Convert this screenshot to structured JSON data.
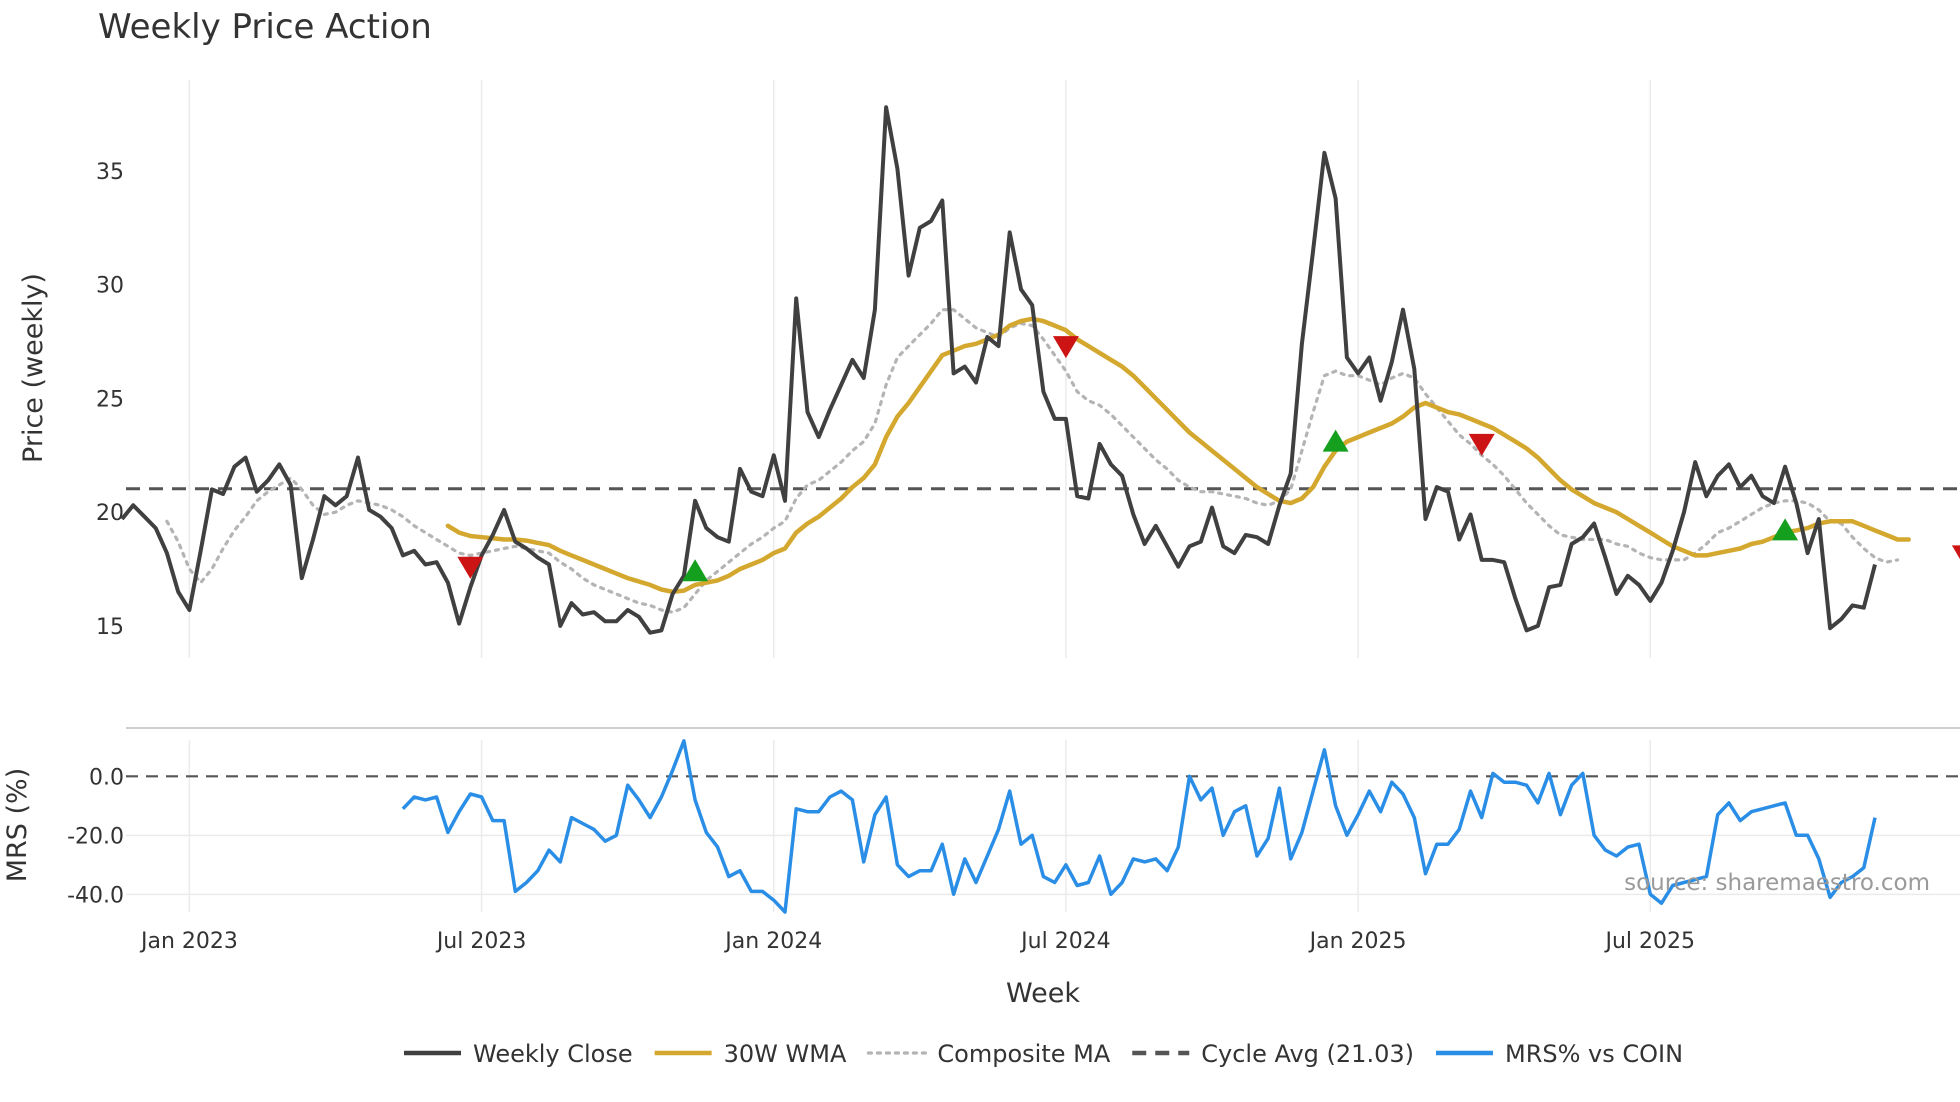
{
  "chart_data": {
    "type": "line",
    "title": "Weekly Price Action",
    "xlabel": "Week",
    "source": "source: sharemaestro.com",
    "x_ticks": [
      "Jan 2023",
      "Jul 2023",
      "Jan 2024",
      "Jul 2024",
      "Jan 2025",
      "Jul 2025"
    ],
    "price_panel": {
      "ylabel": "Price (weekly)",
      "ylim": [
        13.5,
        39
      ],
      "y_ticks": [
        15,
        20,
        25,
        30,
        35
      ],
      "weekly_close": [
        19.7,
        20.3,
        19.8,
        19.3,
        18.2,
        16.5,
        15.7,
        18.3,
        21,
        20.8,
        22,
        22.4,
        20.9,
        21.4,
        22.1,
        21.2,
        17.1,
        18.8,
        20.7,
        20.3,
        20.7,
        22.4,
        20.1,
        19.8,
        19.3,
        18.1,
        18.3,
        17.7,
        17.8,
        16.9,
        15.1,
        16.7,
        18.1,
        19,
        20.1,
        18.7,
        18.4,
        18,
        17.7,
        15,
        16,
        15.5,
        15.6,
        15.2,
        15.2,
        15.7,
        15.4,
        14.7,
        14.8,
        16.4,
        17.2,
        20.5,
        19.3,
        18.9,
        18.7,
        21.9,
        20.9,
        20.7,
        22.5,
        20.5,
        29.4,
        24.4,
        23.3,
        24.5,
        25.6,
        26.7,
        25.9,
        28.9,
        37.8,
        35.1,
        30.4,
        32.5,
        32.8,
        33.7,
        26.1,
        26.4,
        25.7,
        27.7,
        27.3,
        32.3,
        29.8,
        29.1,
        25.3,
        24.1,
        24.1,
        20.7,
        20.6,
        23,
        22.1,
        21.6,
        19.9,
        18.6,
        19.4,
        18.5,
        17.6,
        18.5,
        18.7,
        20.2,
        18.5,
        18.2,
        19,
        18.9,
        18.6,
        20.3,
        21.7,
        27.4,
        31.5,
        35.8,
        33.8,
        26.8,
        26.1,
        26.8,
        24.9,
        26.6,
        28.9,
        26.3,
        19.7,
        21.1,
        20.9,
        18.8,
        19.9,
        17.9,
        17.9,
        17.8,
        16.2,
        14.8,
        15,
        16.7,
        16.8,
        18.6,
        18.9,
        19.5,
        18,
        16.4,
        17.2,
        16.8,
        16.1,
        16.9,
        18.3,
        20,
        22.2,
        20.7,
        21.6,
        22.1,
        21.1,
        21.6,
        20.7,
        20.4,
        22,
        20.4,
        18.2,
        19.7,
        14.9,
        15.3,
        15.9,
        15.8,
        17.7
      ],
      "wma_30w": [
        null,
        null,
        null,
        null,
        null,
        null,
        null,
        null,
        null,
        null,
        null,
        null,
        null,
        null,
        null,
        null,
        null,
        null,
        null,
        null,
        null,
        null,
        null,
        null,
        null,
        null,
        null,
        null,
        null,
        19.4,
        19.1,
        18.95,
        18.9,
        18.85,
        18.8,
        18.8,
        18.75,
        18.65,
        18.55,
        18.3,
        18.1,
        17.9,
        17.7,
        17.5,
        17.3,
        17.1,
        16.95,
        16.8,
        16.6,
        16.5,
        16.55,
        16.8,
        16.9,
        17,
        17.2,
        17.5,
        17.7,
        17.9,
        18.2,
        18.4,
        19.1,
        19.5,
        19.8,
        20.2,
        20.6,
        21.1,
        21.5,
        22.1,
        23.3,
        24.2,
        24.8,
        25.5,
        26.2,
        26.9,
        27.1,
        27.3,
        27.4,
        27.6,
        27.8,
        28.2,
        28.4,
        28.5,
        28.4,
        28.2,
        28,
        27.6,
        27.3,
        27,
        26.7,
        26.4,
        26,
        25.5,
        25,
        24.5,
        24,
        23.5,
        23.1,
        22.7,
        22.3,
        21.9,
        21.5,
        21.1,
        20.8,
        20.5,
        20.4,
        20.6,
        21.1,
        22,
        22.7,
        23.1,
        23.3,
        23.5,
        23.7,
        23.9,
        24.2,
        24.6,
        24.8,
        24.6,
        24.4,
        24.3,
        24.1,
        23.9,
        23.7,
        23.4,
        23.1,
        22.8,
        22.4,
        21.9,
        21.4,
        21,
        20.7,
        20.4,
        20.2,
        20,
        19.7,
        19.4,
        19.1,
        18.8,
        18.5,
        18.3,
        18.1,
        18.1,
        18.2,
        18.3,
        18.4,
        18.6,
        18.7,
        18.9,
        19.1,
        19.2,
        19.3,
        19.5,
        19.6,
        19.6,
        19.6,
        19.4,
        19.2,
        19,
        18.8,
        18.8
      ],
      "composite_ma": [
        null,
        null,
        null,
        null,
        19.6,
        18.7,
        17.5,
        16.9,
        17.5,
        18.4,
        19.2,
        19.8,
        20.5,
        20.9,
        21.2,
        21.5,
        21,
        20.3,
        19.9,
        20,
        20.3,
        20.5,
        20.4,
        20.3,
        20.1,
        19.8,
        19.4,
        19.1,
        18.8,
        18.5,
        18.2,
        18.1,
        18.2,
        18.3,
        18.4,
        18.5,
        18.4,
        18.3,
        18.2,
        17.8,
        17.5,
        17.1,
        16.8,
        16.6,
        16.4,
        16.2,
        16,
        15.9,
        15.7,
        15.6,
        15.8,
        16.4,
        17,
        17.4,
        17.8,
        18.2,
        18.6,
        18.9,
        19.3,
        19.6,
        20.6,
        21.2,
        21.4,
        21.8,
        22.2,
        22.7,
        23.1,
        23.9,
        25.6,
        26.8,
        27.3,
        27.8,
        28.3,
        28.9,
        28.9,
        28.5,
        28.1,
        27.9,
        27.7,
        28.1,
        28.3,
        28.2,
        27.6,
        26.9,
        26.2,
        25.3,
        24.9,
        24.7,
        24.3,
        23.8,
        23.3,
        22.8,
        22.3,
        21.9,
        21.4,
        21.1,
        20.9,
        20.9,
        20.8,
        20.7,
        20.6,
        20.4,
        20.3,
        20.5,
        21,
        22.7,
        24.4,
        26,
        26.2,
        26,
        26,
        25.8,
        25.6,
        25.9,
        26.1,
        25.9,
        25.2,
        24.6,
        24,
        23.4,
        23,
        22.5,
        22.1,
        21.6,
        21,
        20.4,
        19.9,
        19.4,
        19,
        18.9,
        18.8,
        18.8,
        18.8,
        18.6,
        18.5,
        18.2,
        18,
        17.9,
        17.9,
        17.9,
        18.2,
        18.6,
        19.1,
        19.3,
        19.6,
        19.9,
        20.2,
        20.4,
        20.5,
        20.5,
        20.4,
        20.1,
        19.6,
        19.5,
        18.9,
        18.4,
        18,
        17.8,
        17.9
      ],
      "cycle_avg": 21.03,
      "buy_signals": [
        {
          "week": 51,
          "price": 17.4
        },
        {
          "week": 108,
          "price": 23.1
        },
        {
          "week": 148,
          "price": 19.2
        }
      ],
      "sell_signals": [
        {
          "week": 31,
          "price": 17.6
        },
        {
          "week": 84,
          "price": 27.3
        },
        {
          "week": 121,
          "price": 23
        },
        {
          "week": 164,
          "price": 18.1
        }
      ]
    },
    "mrs_panel": {
      "ylabel": "MRS (%)",
      "ylim": [
        -47,
        14
      ],
      "y_ticks": [
        0,
        -20,
        -40
      ],
      "y_tick_labels": [
        "0.0",
        "-20.0",
        "-40.0"
      ],
      "zero_line": 0,
      "mrs_vs_coin": [
        null,
        null,
        null,
        null,
        null,
        null,
        null,
        null,
        null,
        null,
        null,
        null,
        null,
        null,
        null,
        null,
        null,
        null,
        null,
        null,
        null,
        null,
        null,
        null,
        null,
        -11,
        -7,
        -8,
        -7,
        -19,
        -12,
        -6,
        -7,
        -15,
        -15,
        -39,
        -36,
        -32,
        -25,
        -29,
        -14,
        -16,
        -18,
        -22,
        -20,
        -3,
        -8,
        -14,
        -7,
        2,
        12,
        -8,
        -19,
        -24,
        -34,
        -32,
        -39,
        -39,
        -42,
        -46,
        -11,
        -12,
        -12,
        -7,
        -5,
        -8,
        -29,
        -13,
        -7,
        -30,
        -34,
        -32,
        -32,
        -23,
        -40,
        -28,
        -36,
        -27,
        -18,
        -5,
        -23,
        -20,
        -34,
        -36,
        -30,
        -37,
        -36,
        -27,
        -40,
        -36,
        -28,
        -29,
        -28,
        -32,
        -24,
        0,
        -8,
        -4,
        -20,
        -12,
        -10,
        -27,
        -21,
        -4,
        -28,
        -19,
        -5,
        9,
        -10,
        -20,
        -13,
        -5,
        -12,
        -2,
        -6,
        -14,
        -33,
        -23,
        -23,
        -18,
        -5,
        -14,
        1,
        -2,
        -2,
        -3,
        -9,
        1,
        -13,
        -3,
        1,
        -20,
        -25,
        -27,
        -24,
        -23,
        -40,
        -43,
        -37,
        -36,
        -35,
        -34,
        -13,
        -9,
        -15,
        -12,
        -11,
        -10,
        -9,
        -20,
        -20,
        -28,
        -41,
        -36,
        -34,
        -31,
        -14
      ]
    },
    "legend": [
      {
        "label": "Weekly Close",
        "color": "#404040",
        "style": "solid"
      },
      {
        "label": "30W WMA",
        "color": "#d4a82e",
        "style": "solid"
      },
      {
        "label": "Composite MA",
        "color": "#b4b4b4",
        "style": "dotted"
      },
      {
        "label": "Cycle Avg (21.03)",
        "color": "#555555",
        "style": "dashed"
      },
      {
        "label": "MRS% vs COIN",
        "color": "#2a8ee6",
        "style": "solid"
      }
    ],
    "colors": {
      "close": "#404040",
      "wma": "#d4a82e",
      "composite": "#b4b4b4",
      "cycle": "#555555",
      "mrs": "#2a8ee6",
      "buy": "#14a01e",
      "sell": "#cc1414",
      "grid": "#ebebeb"
    }
  }
}
